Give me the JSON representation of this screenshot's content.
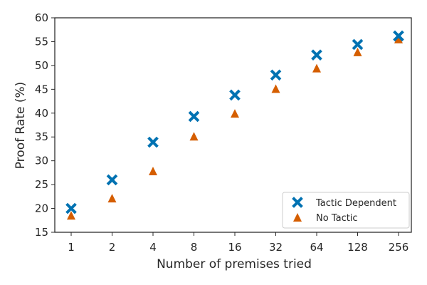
{
  "chart_data": {
    "type": "scatter",
    "title": "",
    "xlabel": "Number of premises tried",
    "ylabel": "Proof Rate (%)",
    "categories": [
      "1",
      "2",
      "4",
      "8",
      "16",
      "32",
      "64",
      "128",
      "256"
    ],
    "ylim": [
      15,
      60
    ],
    "yticks": [
      15,
      20,
      25,
      30,
      35,
      40,
      45,
      50,
      55,
      60
    ],
    "grid": false,
    "legend_position": "bottom-right",
    "series": [
      {
        "name": "Tactic Dependent",
        "marker": "x",
        "color": "#0072b2",
        "values": [
          20.0,
          26.0,
          33.9,
          39.3,
          43.8,
          48.0,
          52.2,
          54.4,
          56.2
        ]
      },
      {
        "name": "No Tactic",
        "marker": "triangle",
        "color": "#d55e00",
        "values": [
          18.4,
          22.0,
          27.7,
          35.0,
          39.8,
          45.0,
          49.3,
          52.7,
          55.4
        ]
      }
    ]
  }
}
